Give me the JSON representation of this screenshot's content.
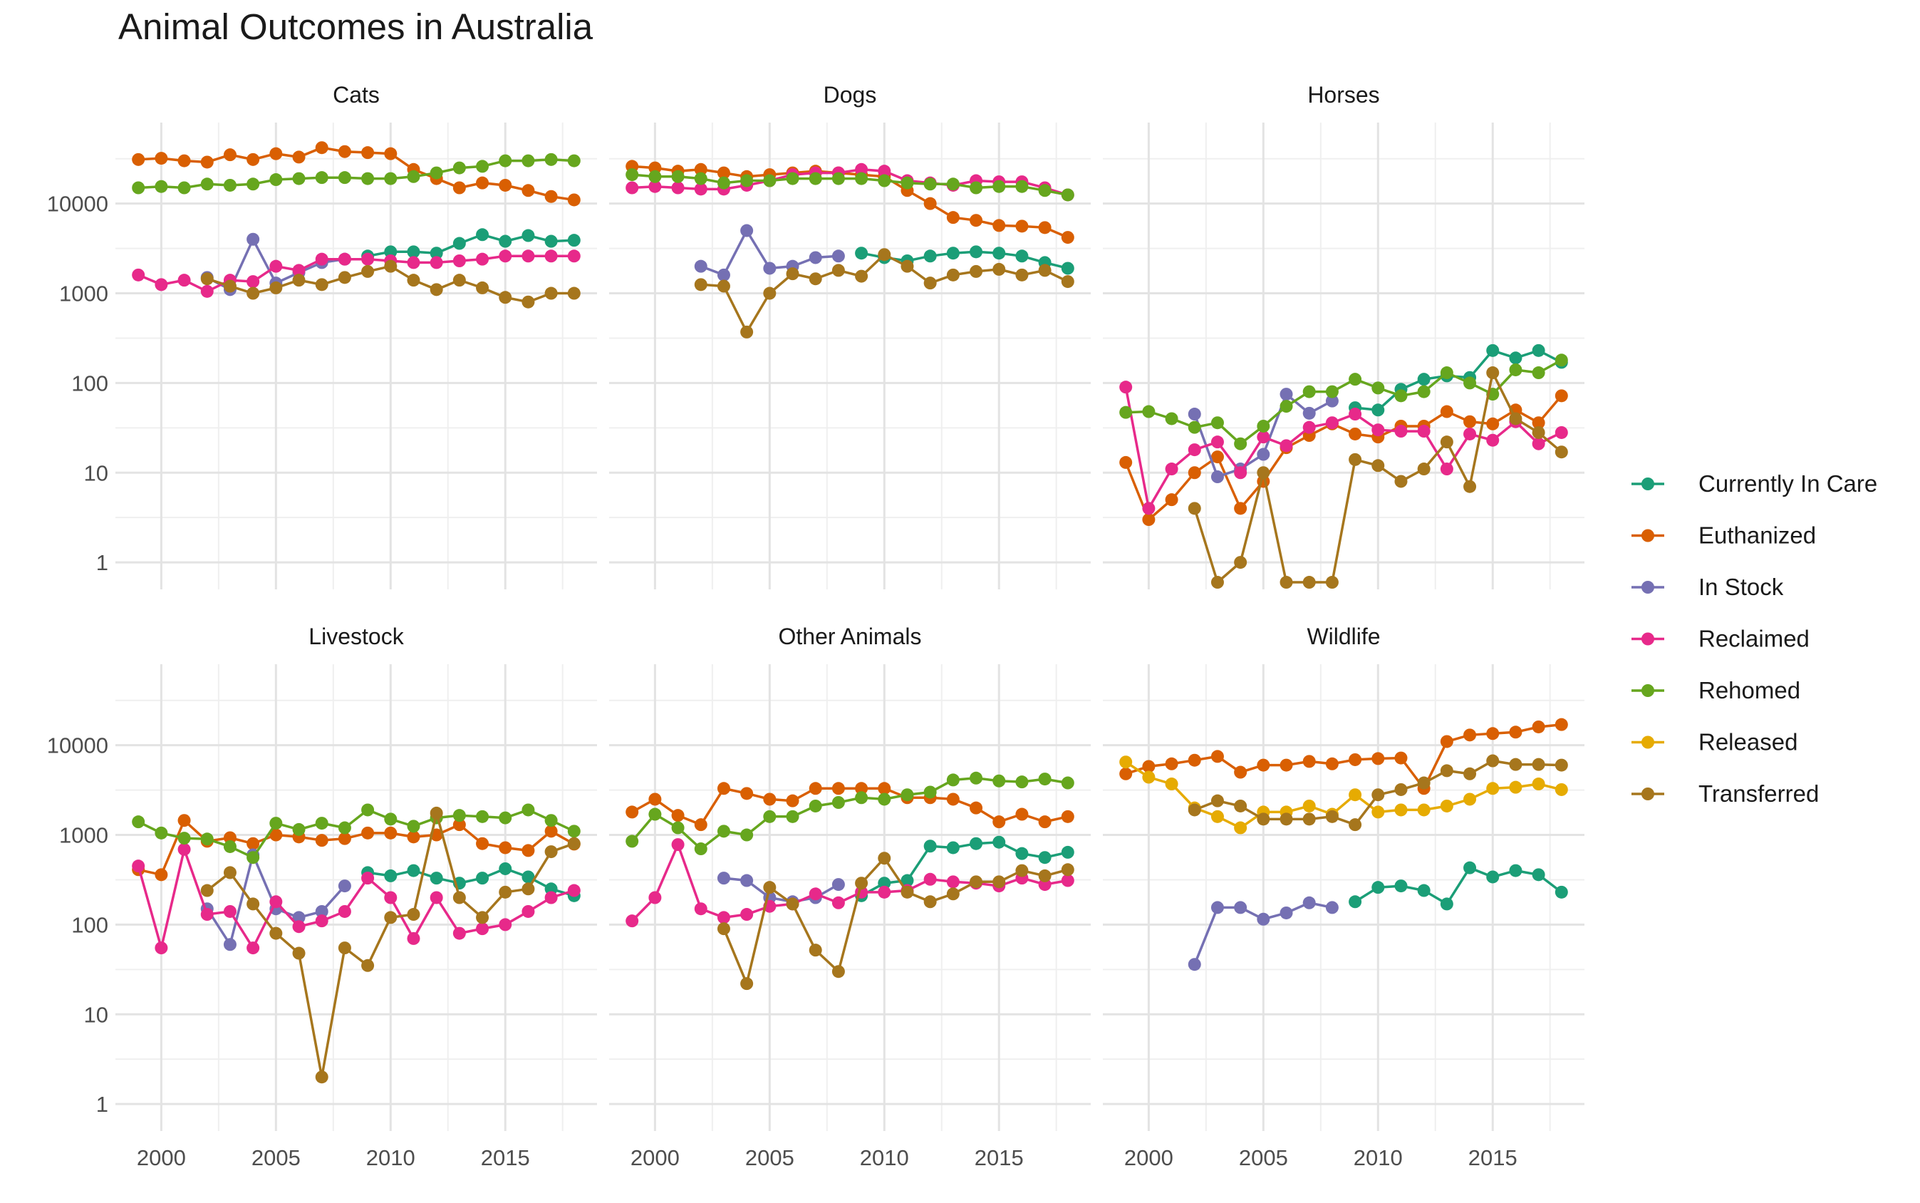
{
  "chart_data": {
    "type": "line",
    "title": "Animal Outcomes in Australia",
    "xlabel": "",
    "ylabel": "",
    "y_scale": "log10",
    "ylim": [
      0.5,
      80000
    ],
    "xlim": [
      1998,
      2019
    ],
    "x_ticks": [
      2000,
      2005,
      2010,
      2015
    ],
    "x_tick_labels": [
      "2000",
      "2005",
      "2010",
      "2015"
    ],
    "y_ticks": [
      1,
      10,
      100,
      1000,
      10000
    ],
    "y_tick_labels": [
      "1",
      "10",
      "100",
      "1000",
      "10000"
    ],
    "grid": true,
    "legend_position": "right",
    "years": [
      1999,
      2000,
      2001,
      2002,
      2003,
      2004,
      2005,
      2006,
      2007,
      2008,
      2009,
      2010,
      2011,
      2012,
      2013,
      2014,
      2015,
      2016,
      2017,
      2018
    ],
    "legend": [
      {
        "name": "Currently In Care",
        "color": "#1b9e77"
      },
      {
        "name": "Euthanized",
        "color": "#d95f02"
      },
      {
        "name": "In Stock",
        "color": "#7570b3"
      },
      {
        "name": "Reclaimed",
        "color": "#e7298a"
      },
      {
        "name": "Rehomed",
        "color": "#66a61e"
      },
      {
        "name": "Released",
        "color": "#e6ab02"
      },
      {
        "name": "Transferred",
        "color": "#a6761d"
      }
    ],
    "panels": [
      {
        "name": "Cats",
        "series": [
          {
            "name": "Currently In Care",
            "values": [
              null,
              null,
              null,
              null,
              null,
              null,
              null,
              null,
              null,
              null,
              2600,
              2900,
              2900,
              2800,
              3600,
              4500,
              3800,
              4400,
              3800,
              3900
            ]
          },
          {
            "name": "Euthanized",
            "values": [
              31000,
              32000,
              30000,
              29000,
              35000,
              31000,
              36000,
              33000,
              42000,
              38000,
              37000,
              36000,
              24000,
              19000,
              15000,
              17000,
              16000,
              14000,
              12000,
              11000
            ]
          },
          {
            "name": "In Stock",
            "values": [
              null,
              null,
              null,
              1500,
              1100,
              4000,
              1300,
              1700,
              2200,
              2400,
              null,
              null,
              null,
              null,
              null,
              null,
              null,
              null,
              null,
              null
            ]
          },
          {
            "name": "Reclaimed",
            "values": [
              1600,
              1250,
              1400,
              1050,
              1400,
              1350,
              2000,
              1800,
              2400,
              2400,
              2400,
              2300,
              2200,
              2200,
              2300,
              2400,
              2600,
              2600,
              2600,
              2600
            ]
          },
          {
            "name": "Rehomed",
            "values": [
              15000,
              15500,
              15000,
              16500,
              16000,
              16500,
              18500,
              19000,
              19500,
              19500,
              19000,
              19000,
              20000,
              22000,
              25000,
              26000,
              30000,
              30000,
              31000,
              30000
            ]
          },
          {
            "name": "Transferred",
            "values": [
              null,
              null,
              null,
              1450,
              1200,
              1000,
              1150,
              1400,
              1250,
              1500,
              1750,
              2000,
              1400,
              1100,
              1400,
              1150,
              900,
              800,
              1000,
              1000
            ]
          }
        ]
      },
      {
        "name": "Dogs",
        "series": [
          {
            "name": "Currently In Care",
            "values": [
              null,
              null,
              null,
              null,
              null,
              null,
              null,
              null,
              null,
              null,
              2800,
              2500,
              2300,
              2600,
              2800,
              2900,
              2800,
              2600,
              2200,
              1900
            ]
          },
          {
            "name": "Euthanized",
            "values": [
              26000,
              25000,
              23000,
              24000,
              22000,
              20000,
              21000,
              22000,
              23000,
              22000,
              21000,
              20000,
              14000,
              10000,
              7000,
              6500,
              5700,
              5600,
              5400,
              4200
            ]
          },
          {
            "name": "In Stock",
            "values": [
              null,
              null,
              null,
              2000,
              1600,
              5000,
              1900,
              2000,
              2500,
              2600,
              null,
              null,
              null,
              null,
              null,
              null,
              null,
              null,
              null,
              null
            ]
          },
          {
            "name": "Reclaimed",
            "values": [
              15000,
              15500,
              15000,
              14500,
              14500,
              16000,
              18000,
              21000,
              22000,
              22000,
              24000,
              23000,
              18000,
              17000,
              16000,
              18000,
              17500,
              17500,
              15000,
              12500
            ]
          },
          {
            "name": "Rehomed",
            "values": [
              21000,
              20000,
              20000,
              19000,
              17000,
              18000,
              18000,
              19000,
              19000,
              19000,
              19000,
              18000,
              17000,
              16500,
              16500,
              15000,
              15500,
              15500,
              14000,
              12500
            ]
          },
          {
            "name": "Transferred",
            "values": [
              null,
              null,
              null,
              1250,
              1200,
              370,
              1000,
              1650,
              1450,
              1800,
              1550,
              2700,
              2000,
              1300,
              1600,
              1750,
              1850,
              1600,
              1800,
              1350
            ]
          }
        ]
      },
      {
        "name": "Horses",
        "series": [
          {
            "name": "Currently In Care",
            "values": [
              null,
              null,
              null,
              null,
              null,
              null,
              null,
              null,
              null,
              null,
              53,
              50,
              85,
              110,
              120,
              115,
              230,
              190,
              230,
              170
            ]
          },
          {
            "name": "Euthanized",
            "values": [
              13,
              3,
              5,
              10,
              15,
              4,
              8,
              19,
              26,
              35,
              27,
              25,
              33,
              33,
              48,
              37,
              35,
              50,
              36,
              72
            ]
          },
          {
            "name": "In Stock",
            "values": [
              null,
              null,
              null,
              45,
              9,
              11,
              16,
              75,
              46,
              63,
              null,
              null,
              null,
              null,
              null,
              null,
              null,
              null,
              null,
              null
            ]
          },
          {
            "name": "Reclaimed",
            "values": [
              90,
              4,
              11,
              18,
              22,
              10,
              25,
              20,
              32,
              36,
              45,
              30,
              29,
              29,
              11,
              27,
              23,
              37,
              21,
              28
            ]
          },
          {
            "name": "Rehomed",
            "values": [
              47,
              48,
              40,
              32,
              36,
              21,
              33,
              55,
              80,
              80,
              110,
              88,
              72,
              80,
              130,
              100,
              75,
              140,
              130,
              180
            ]
          },
          {
            "name": "Transferred",
            "values": [
              null,
              null,
              null,
              4,
              0.6,
              1,
              10,
              0.6,
              0.6,
              0.6,
              14,
              12,
              8,
              11,
              22,
              7,
              130,
              40,
              28,
              17
            ]
          }
        ]
      },
      {
        "name": "Livestock",
        "series": [
          {
            "name": "Currently In Care",
            "values": [
              null,
              null,
              null,
              null,
              null,
              null,
              null,
              null,
              null,
              null,
              380,
              350,
              400,
              330,
              290,
              330,
              420,
              340,
              250,
              210
            ]
          },
          {
            "name": "Euthanized",
            "values": [
              410,
              360,
              1450,
              850,
              930,
              800,
              1000,
              950,
              870,
              910,
              1050,
              1050,
              950,
              1000,
              1300,
              800,
              720,
              670,
              1100,
              790
            ]
          },
          {
            "name": "In Stock",
            "values": [
              null,
              null,
              null,
              150,
              60,
              600,
              150,
              120,
              140,
              270,
              null,
              null,
              null,
              null,
              null,
              null,
              null,
              null,
              null,
              null
            ]
          },
          {
            "name": "Reclaimed",
            "values": [
              450,
              55,
              690,
              130,
              140,
              55,
              180,
              95,
              110,
              140,
              330,
              200,
              70,
              200,
              80,
              90,
              100,
              140,
              200,
              240
            ]
          },
          {
            "name": "Rehomed",
            "values": [
              1400,
              1050,
              920,
              900,
              740,
              560,
              1350,
              1150,
              1350,
              1200,
              1900,
              1500,
              1250,
              1550,
              1650,
              1600,
              1550,
              1900,
              1450,
              1100
            ]
          },
          {
            "name": "Transferred",
            "values": [
              null,
              null,
              null,
              240,
              380,
              170,
              80,
              48,
              2,
              55,
              35,
              120,
              130,
              1750,
              200,
              120,
              230,
              250,
              650,
              800
            ]
          }
        ]
      },
      {
        "name": "Other Animals",
        "series": [
          {
            "name": "Currently In Care",
            "values": [
              null,
              null,
              null,
              null,
              null,
              null,
              null,
              null,
              null,
              null,
              210,
              290,
              310,
              750,
              720,
              800,
              830,
              620,
              560,
              640
            ]
          },
          {
            "name": "Euthanized",
            "values": [
              1800,
              2500,
              1650,
              1300,
              3300,
              2900,
              2500,
              2400,
              3300,
              3300,
              3300,
              3300,
              2600,
              2600,
              2500,
              2000,
              1400,
              1700,
              1400,
              1600
            ]
          },
          {
            "name": "In Stock",
            "values": [
              null,
              null,
              null,
              null,
              330,
              310,
              200,
              180,
              200,
              280,
              null,
              null,
              null,
              null,
              null,
              null,
              null,
              null,
              null,
              null
            ]
          },
          {
            "name": "Reclaimed",
            "values": [
              110,
              200,
              780,
              150,
              120,
              130,
              160,
              170,
              220,
              175,
              230,
              230,
              240,
              320,
              300,
              290,
              270,
              330,
              280,
              310
            ]
          },
          {
            "name": "Rehomed",
            "values": [
              850,
              1700,
              1200,
              700,
              1100,
              1000,
              1600,
              1600,
              2100,
              2300,
              2600,
              2500,
              2800,
              3000,
              4100,
              4300,
              4000,
              3900,
              4200,
              3800
            ]
          },
          {
            "name": "Transferred",
            "values": [
              null,
              null,
              null,
              null,
              90,
              22,
              260,
              170,
              52,
              30,
              290,
              550,
              230,
              180,
              220,
              300,
              300,
              400,
              350,
              410
            ]
          }
        ]
      },
      {
        "name": "Wildlife",
        "series": [
          {
            "name": "Currently In Care",
            "values": [
              null,
              null,
              null,
              null,
              null,
              null,
              null,
              null,
              null,
              null,
              180,
              260,
              270,
              240,
              170,
              430,
              340,
              400,
              360,
              230
            ]
          },
          {
            "name": "Euthanized",
            "values": [
              4800,
              5800,
              6200,
              6800,
              7500,
              5000,
              6000,
              6000,
              6600,
              6200,
              6900,
              7100,
              7200,
              3300,
              11000,
              13000,
              13500,
              14000,
              16000,
              17000
            ]
          },
          {
            "name": "In Stock",
            "values": [
              null,
              null,
              null,
              36,
              155,
              155,
              115,
              135,
              175,
              155,
              null,
              null,
              null,
              null,
              null,
              null,
              null,
              null,
              null,
              null
            ]
          },
          {
            "name": "Released",
            "values": [
              6500,
              4400,
              3700,
              2000,
              1600,
              1200,
              1800,
              1800,
              2100,
              1700,
              2800,
              1800,
              1900,
              1900,
              2100,
              2500,
              3300,
              3400,
              3700,
              3200
            ]
          },
          {
            "name": "Transferred",
            "values": [
              null,
              null,
              null,
              1900,
              2400,
              2100,
              1500,
              1500,
              1500,
              1600,
              1300,
              2800,
              3200,
              3800,
              5200,
              4800,
              6700,
              6100,
              6100,
              6000
            ]
          }
        ]
      }
    ]
  }
}
